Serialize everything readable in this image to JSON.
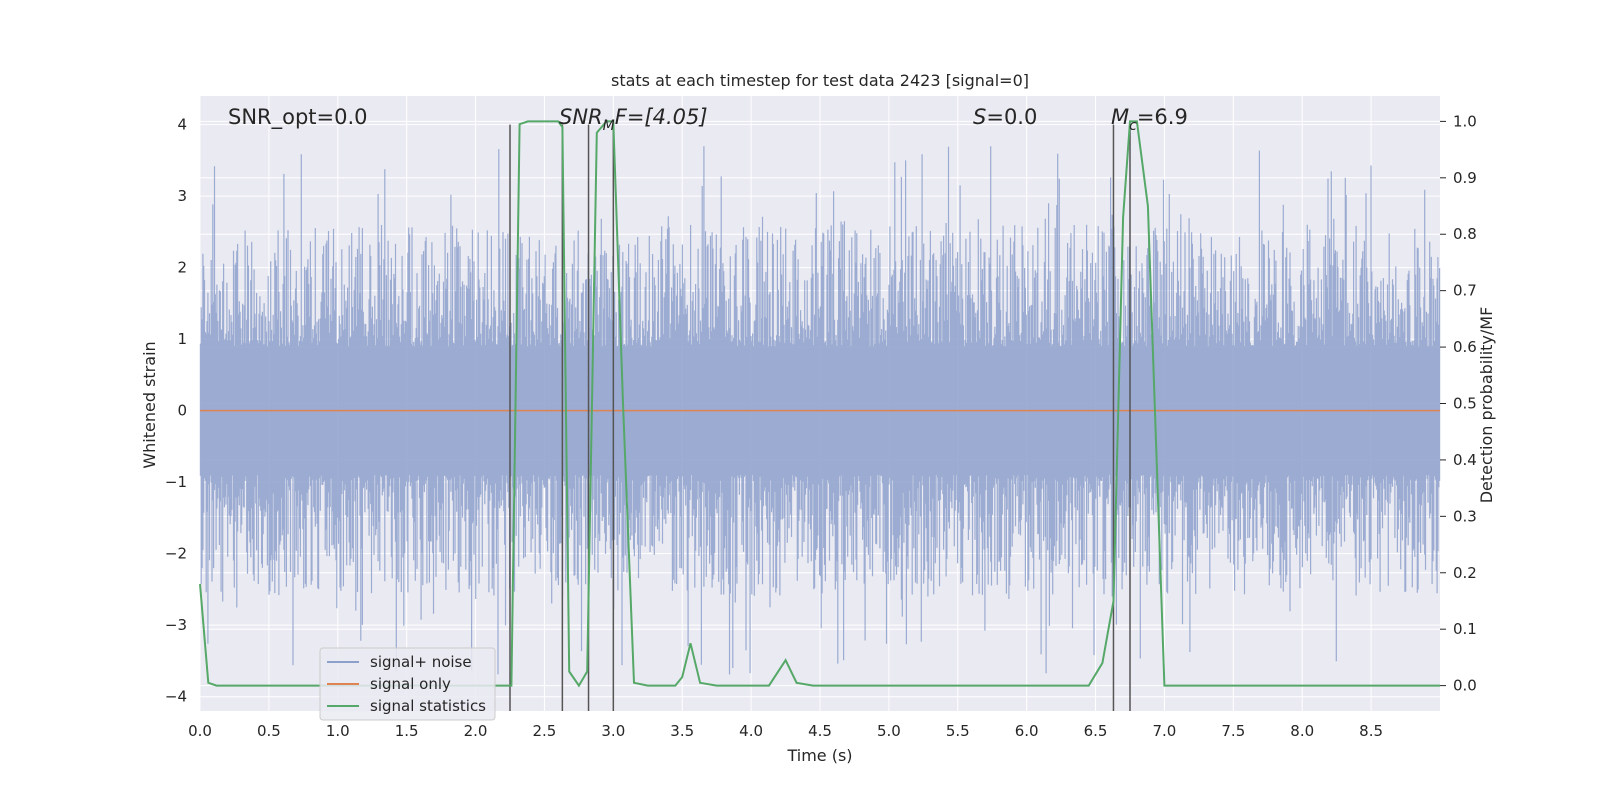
{
  "chart_data": {
    "type": "line",
    "title": "stats at each timestep for test data 2423 [signal=0]",
    "xlabel": "Time (s)",
    "ylabel": "Whitened strain",
    "y2label": "Detection probability/MF",
    "xlim": [
      0,
      9.0
    ],
    "ylim": [
      -4.2,
      4.4
    ],
    "y2lim": [
      -0.045,
      1.045
    ],
    "grid": true,
    "x_ticks": [
      "0.0",
      "0.5",
      "1.0",
      "1.5",
      "2.0",
      "2.5",
      "3.0",
      "3.5",
      "4.0",
      "4.5",
      "5.0",
      "5.5",
      "6.0",
      "6.5",
      "7.0",
      "7.5",
      "8.0",
      "8.5"
    ],
    "x_tick_values": [
      0,
      0.5,
      1,
      1.5,
      2,
      2.5,
      3,
      3.5,
      4,
      4.5,
      5,
      5.5,
      6,
      6.5,
      7,
      7.5,
      8,
      8.5
    ],
    "y_ticks": [
      "−4",
      "−3",
      "−2",
      "−1",
      "0",
      "1",
      "2",
      "3",
      "4"
    ],
    "y_tick_values": [
      -4,
      -3,
      -2,
      -1,
      0,
      1,
      2,
      3,
      4
    ],
    "y2_ticks": [
      "0.0",
      "0.1",
      "0.2",
      "0.3",
      "0.4",
      "0.5",
      "0.6",
      "0.7",
      "0.8",
      "0.9",
      "1.0"
    ],
    "y2_tick_values": [
      0,
      0.1,
      0.2,
      0.3,
      0.4,
      0.5,
      0.6,
      0.7,
      0.8,
      0.9,
      1.0
    ],
    "annotations": {
      "snr_opt": "SNR_opt=0.0",
      "snr_mf_main": "SNR",
      "snr_mf_sub": "M",
      "snr_mf_rest": "F=[4.05]",
      "s_main": "S",
      "s_rest": "=0.0",
      "mc_main": "M",
      "mc_sub": "c",
      "mc_rest": "=6.9"
    },
    "legend": {
      "position": "lower-left",
      "entries": [
        "signal+ noise",
        "signal only",
        "signal statistics"
      ]
    },
    "colors": {
      "noise": "#8da0cb",
      "signal": "#dd8452",
      "stats": "#55a868",
      "vlines": "#555555",
      "background": "#eaeaf2",
      "grid": "#ffffff"
    },
    "noise_amplitude_typical": 2.6,
    "noise_amplitude_max": 3.7,
    "signal_only": {
      "x": [
        0,
        9.0
      ],
      "y": [
        0,
        0
      ]
    },
    "detection_lines_x": [
      2.25,
      2.63,
      2.82,
      3.0,
      6.63,
      6.75
    ],
    "detection_lines_ymax": 4.0,
    "signal_statistics": {
      "x": [
        0.0,
        0.06,
        0.12,
        0.2,
        0.5,
        1.0,
        1.5,
        2.0,
        2.24,
        2.26,
        2.32,
        2.38,
        2.5,
        2.6,
        2.63,
        2.68,
        2.75,
        2.81,
        2.88,
        2.95,
        3.0,
        3.07,
        3.15,
        3.25,
        3.35,
        3.45,
        3.5,
        3.56,
        3.63,
        3.75,
        4.0,
        4.13,
        4.25,
        4.33,
        4.45,
        5.0,
        5.5,
        6.0,
        6.35,
        6.45,
        6.55,
        6.63,
        6.7,
        6.75,
        6.8,
        6.88,
        7.0,
        7.5,
        8.0,
        8.5,
        9.0
      ],
      "y": [
        0.18,
        0.005,
        0.0,
        0.0,
        0.0,
        0.0,
        0.0,
        0.0,
        0.0,
        0.0,
        0.995,
        1.0,
        1.0,
        1.0,
        0.99,
        0.025,
        0.0,
        0.025,
        0.98,
        1.0,
        1.0,
        0.5,
        0.005,
        0.0,
        0.0,
        0.0,
        0.015,
        0.075,
        0.005,
        0.0,
        0.0,
        0.0,
        0.045,
        0.005,
        0.0,
        0.0,
        0.0,
        0.0,
        0.0,
        0.0,
        0.04,
        0.15,
        0.83,
        1.0,
        1.0,
        0.85,
        0.0,
        0.0,
        0.0,
        0.0,
        0.0
      ]
    }
  }
}
